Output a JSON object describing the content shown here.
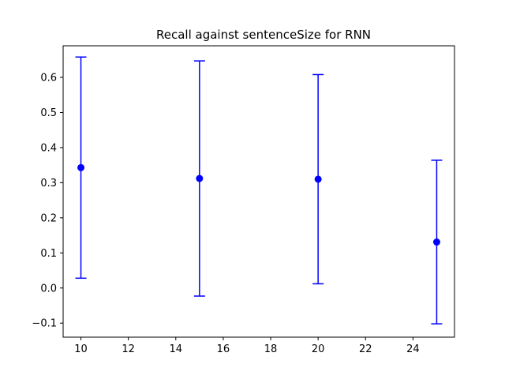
{
  "chart_data": {
    "type": "scatter",
    "title": "Recall against sentenceSize for RNN",
    "xlabel": "",
    "ylabel": "",
    "x": [
      10,
      15,
      20,
      25
    ],
    "y": [
      0.343,
      0.312,
      0.31,
      0.131
    ],
    "yerr": [
      0.315,
      0.335,
      0.298,
      0.233
    ],
    "xlim": [
      9.25,
      25.75
    ],
    "ylim": [
      -0.14,
      0.69
    ],
    "xticks": [
      10,
      12,
      14,
      16,
      18,
      20,
      22,
      24
    ],
    "yticks": [
      -0.1,
      0.0,
      0.1,
      0.2,
      0.3,
      0.4,
      0.5,
      0.6
    ],
    "ytick_labels": [
      "−0.1",
      "0.0",
      "0.1",
      "0.2",
      "0.3",
      "0.4",
      "0.5",
      "0.6"
    ],
    "grid": false,
    "color": "#0000ff"
  }
}
